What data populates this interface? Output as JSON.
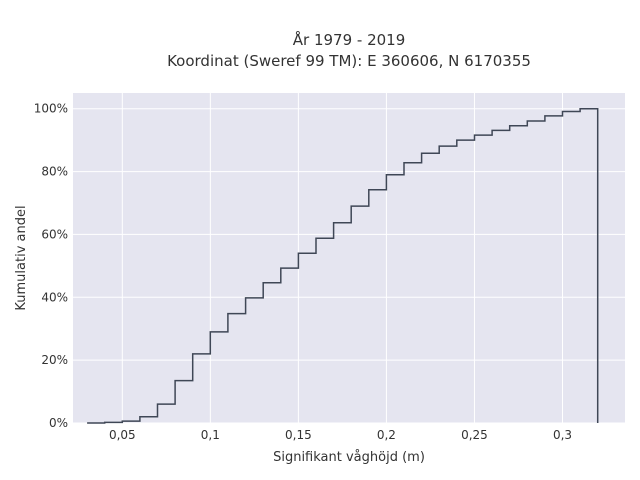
{
  "chart_data": {
    "type": "line",
    "title": [
      "År 1979 - 2019",
      "Koordinat (Sweref 99 TM): E 360606, N 6170355"
    ],
    "xlabel": "Signifikant våghöjd (m)",
    "ylabel": "Kumulativ andel",
    "xlim": [
      0.022,
      0.3355
    ],
    "ylim": [
      0,
      1.05
    ],
    "grid": true,
    "legend": "none",
    "x_ticks": [
      0.05,
      0.1,
      0.15,
      0.2,
      0.25,
      0.3
    ],
    "x_tick_labels": [
      "0,05",
      "0,1",
      "0,15",
      "0,2",
      "0,25",
      "0,3"
    ],
    "y_ticks": [
      0,
      0.2,
      0.4,
      0.6,
      0.8,
      1.0
    ],
    "y_tick_labels": [
      "0%",
      "20%",
      "40%",
      "60%",
      "80%",
      "100%"
    ],
    "series": [
      {
        "step": "hv",
        "color": "#3f4756",
        "x": [
          0.03,
          0.04,
          0.05,
          0.06,
          0.07,
          0.08,
          0.09,
          0.1,
          0.11,
          0.12,
          0.13,
          0.14,
          0.15,
          0.16,
          0.17,
          0.18,
          0.19,
          0.2,
          0.21,
          0.22,
          0.23,
          0.24,
          0.25,
          0.26,
          0.27,
          0.28,
          0.29,
          0.3,
          0.31,
          0.32,
          0.32
        ],
        "y": [
          0.0,
          0.002,
          0.006,
          0.02,
          0.06,
          0.135,
          0.22,
          0.29,
          0.348,
          0.398,
          0.446,
          0.493,
          0.54,
          0.588,
          0.637,
          0.69,
          0.742,
          0.79,
          0.828,
          0.858,
          0.881,
          0.9,
          0.916,
          0.931,
          0.946,
          0.961,
          0.977,
          0.991,
          1.0,
          1.0,
          0.0
        ]
      }
    ]
  }
}
